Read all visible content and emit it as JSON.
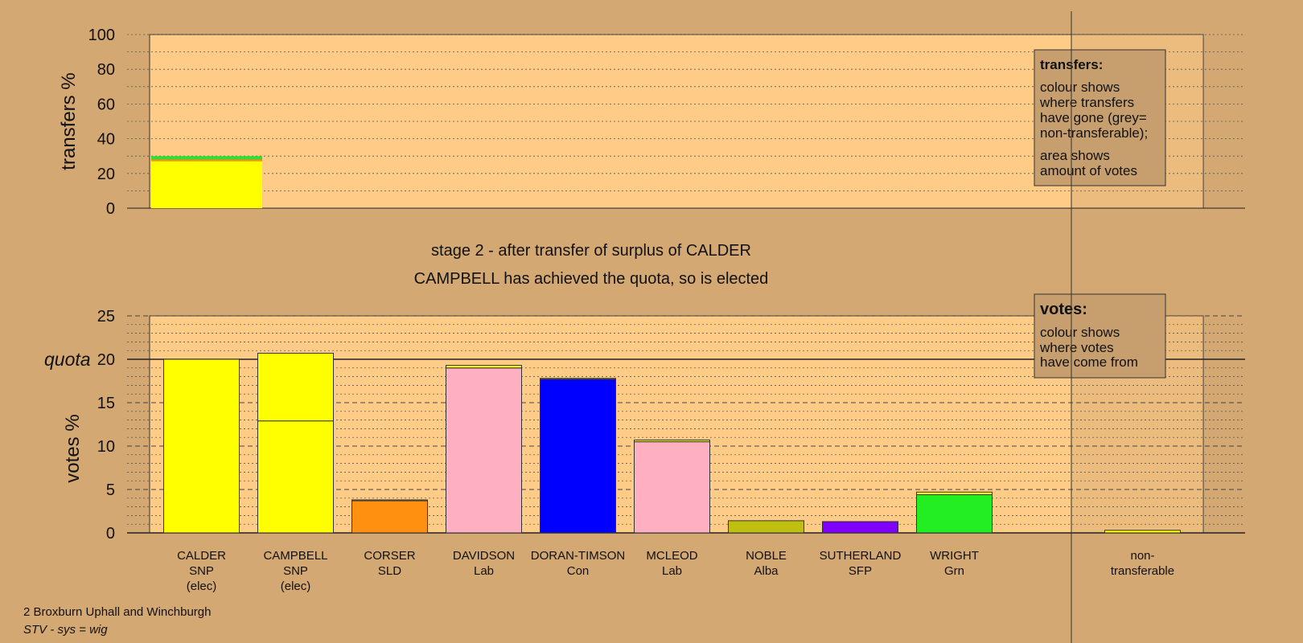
{
  "stage": {
    "line1": "stage 2 - after transfer of surplus of CALDER",
    "line2": "CAMPBELL has achieved the quota, so is elected"
  },
  "footer": {
    "ward": "2 Broxburn Uphall and Winchburgh",
    "system": "STV - sys = wig"
  },
  "colors": {
    "page_bg": "#d4a872",
    "plot_bg": "#ffcc88",
    "shade": "#c79f6e"
  },
  "chart_data": [
    {
      "type": "bar",
      "name": "transfers",
      "ylabel": "transfers %",
      "ylim": [
        0,
        100
      ],
      "yticks": [
        0,
        20,
        40,
        60,
        80,
        100
      ],
      "bars": [
        {
          "candidate": "CALDER",
          "total": 30,
          "segments": [
            {
              "value": 27,
              "color": "#ffff00"
            },
            {
              "value": 1,
              "color": "#ff9010"
            },
            {
              "value": 2,
              "color": "#33dd33"
            }
          ]
        }
      ],
      "legend": {
        "title": "transfers:",
        "lines": [
          "colour shows",
          "where transfers",
          "have gone (grey=",
          "non-transferable);",
          "area shows",
          "amount of votes"
        ]
      }
    },
    {
      "type": "bar",
      "name": "votes",
      "ylabel": "votes %",
      "ylim": [
        0,
        25
      ],
      "yticks": [
        0,
        5,
        10,
        15,
        20,
        25
      ],
      "quota": 20,
      "quota_label": "quota",
      "legend": {
        "title": "votes:",
        "lines": [
          "colour shows",
          "where votes",
          "have come from"
        ]
      },
      "categories": [
        {
          "name": "CALDER",
          "party": "SNP",
          "note": "(elec)"
        },
        {
          "name": "CAMPBELL",
          "party": "SNP",
          "note": "(elec)"
        },
        {
          "name": "CORSER",
          "party": "SLD",
          "note": ""
        },
        {
          "name": "DAVIDSON",
          "party": "Lab",
          "note": ""
        },
        {
          "name": "DORAN-TIMSON",
          "party": "Con",
          "note": ""
        },
        {
          "name": "MCLEOD",
          "party": "Lab",
          "note": ""
        },
        {
          "name": "NOBLE",
          "party": "Alba",
          "note": ""
        },
        {
          "name": "SUTHERLAND",
          "party": "SFP",
          "note": ""
        },
        {
          "name": "WRIGHT",
          "party": "Grn",
          "note": ""
        },
        {
          "name": "",
          "party": "",
          "note": ""
        },
        {
          "name": "non-",
          "party": "transferable",
          "note": ""
        }
      ],
      "bars": [
        {
          "candidate": "CALDER",
          "segments": [
            {
              "value": 20.0,
              "color": "#ffff00"
            }
          ]
        },
        {
          "candidate": "CAMPBELL",
          "segments": [
            {
              "value": 12.9,
              "color": "#ffff00"
            },
            {
              "value": 7.8,
              "color": "#ffff00"
            }
          ]
        },
        {
          "candidate": "CORSER",
          "segments": [
            {
              "value": 3.7,
              "color": "#ff9010"
            },
            {
              "value": 0.1,
              "color": "#ffff00"
            }
          ]
        },
        {
          "candidate": "DAVIDSON",
          "segments": [
            {
              "value": 19.0,
              "color": "#ffb0c0"
            },
            {
              "value": 0.3,
              "color": "#ffff00"
            }
          ]
        },
        {
          "candidate": "DORAN-TIMSON",
          "segments": [
            {
              "value": 17.7,
              "color": "#0000ff"
            },
            {
              "value": 0.1,
              "color": "#ffff00"
            }
          ]
        },
        {
          "candidate": "MCLEOD",
          "segments": [
            {
              "value": 10.5,
              "color": "#ffb0c0"
            },
            {
              "value": 0.2,
              "color": "#ffff00"
            }
          ]
        },
        {
          "candidate": "NOBLE",
          "segments": [
            {
              "value": 1.4,
              "color": "#bfbf10"
            }
          ]
        },
        {
          "candidate": "SUTHERLAND",
          "segments": [
            {
              "value": 1.3,
              "color": "#8000ff"
            }
          ]
        },
        {
          "candidate": "WRIGHT",
          "segments": [
            {
              "value": 4.4,
              "color": "#22ee22"
            },
            {
              "value": 0.3,
              "color": "#ffff00"
            }
          ]
        },
        {
          "candidate": "",
          "segments": []
        },
        {
          "candidate": "non-transferable",
          "segments": [
            {
              "value": 0.3,
              "color": "#ffff00"
            }
          ]
        }
      ]
    }
  ]
}
